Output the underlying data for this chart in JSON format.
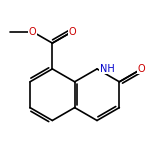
{
  "background_color": "#ffffff",
  "bond_color": "#000000",
  "N_color": "#0000cc",
  "O_color": "#cc0000",
  "bond_lw": 1.2,
  "dbo": 0.032,
  "fs": 7.0,
  "bl": 0.3,
  "figsize": [
    1.52,
    1.52
  ],
  "dpi": 100,
  "xlim": [
    -1.05,
    0.75
  ],
  "ylim": [
    -0.65,
    0.75
  ]
}
